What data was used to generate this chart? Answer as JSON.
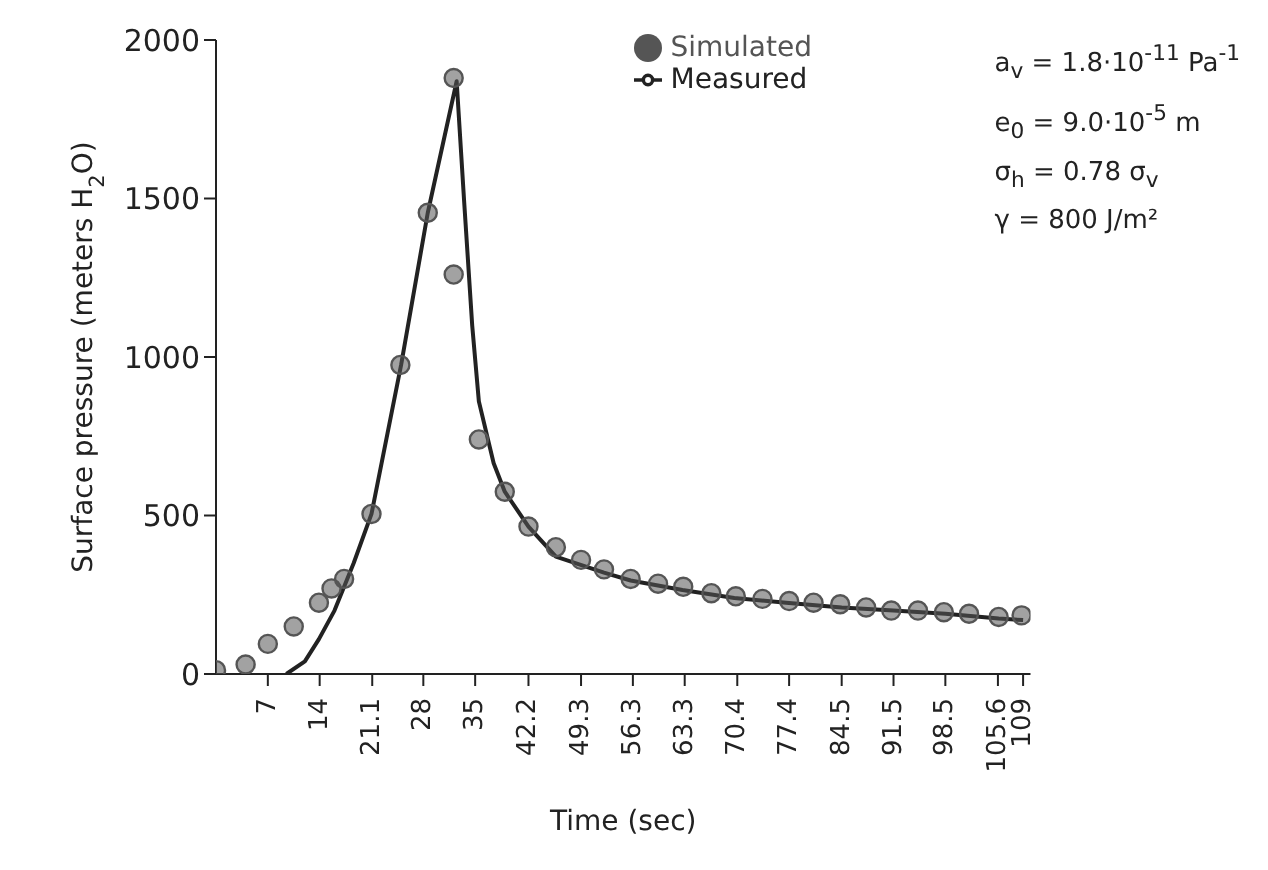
{
  "chart_data": {
    "type": "scatter",
    "xlabel": "Time (sec)",
    "ylabel": "Surface pressure (meters H$_{2}$O)",
    "xlim": [
      0,
      110
    ],
    "xticks": [
      7,
      14,
      21.1,
      28,
      35,
      42.2,
      49.3,
      56.3,
      63.3,
      70.4,
      77.4,
      84.5,
      91.5,
      98.5,
      105.6,
      109
    ],
    "ylim": [
      0,
      2000
    ],
    "yticks": [
      0,
      500,
      1000,
      1500,
      2000
    ],
    "legend": "top right",
    "grid": false,
    "series": [
      {
        "name": "Simulated",
        "marker": "circle",
        "color": "#555555",
        "x": [
          0,
          4,
          7,
          10.5,
          13.9,
          15.6,
          17.3,
          21,
          24.9,
          28.6,
          32.1,
          32.1,
          35.5,
          39,
          42.2,
          45.9,
          49.3,
          52.4,
          56,
          59.7,
          63.1,
          66.9,
          70.2,
          73.8,
          77.4,
          80.7,
          84.3,
          87.8,
          91.2,
          94.8,
          98.3,
          101.7,
          105.7,
          108.8
        ],
        "values": [
          12,
          30,
          95,
          150,
          225,
          270,
          300,
          505,
          975,
          1455,
          1880,
          1260,
          740,
          575,
          465,
          400,
          360,
          330,
          300,
          285,
          275,
          255,
          245,
          237,
          230,
          225,
          220,
          210,
          200,
          200,
          195,
          190,
          180,
          185
        ]
      },
      {
        "name": "Measured",
        "type": "line",
        "marker": "none",
        "line_style": "solid",
        "color": "#222222",
        "x": [
          9.5,
          12,
          13.9,
          16,
          18.6,
          21,
          25,
          28.6,
          32.5,
          33.5,
          34.6,
          35.5,
          37.5,
          39,
          42.2,
          45.9,
          52.4,
          56,
          63,
          70,
          77,
          84.5,
          91.5,
          98.5,
          105.7,
          109
        ],
        "values": [
          0,
          40,
          110,
          200,
          350,
          505,
          975,
          1455,
          1870,
          1495,
          1100,
          860,
          665,
          575,
          465,
          370,
          320,
          295,
          265,
          240,
          225,
          210,
          200,
          190,
          175,
          170
        ]
      }
    ],
    "annotations": [
      "a$_{v}$ = 1.8·10$^{-11}$ Pa$^{-1}$",
      "e$_{0}$ = 9.0·10$^{-5}$ m",
      "σ$_{h}$ = 0.78 σ$_{v}$",
      "γ = 800 J/m²"
    ]
  }
}
